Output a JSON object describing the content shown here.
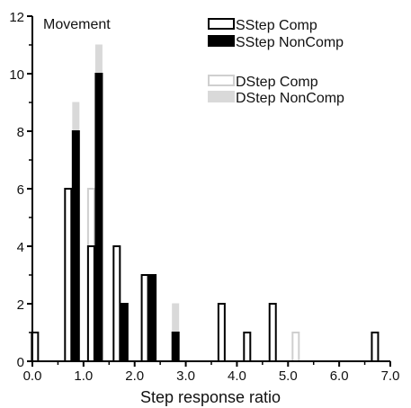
{
  "chart_data": {
    "type": "bar",
    "annotation": "Movement",
    "xlabel": "Step response ratio",
    "ylabel": "",
    "xlim": [
      0,
      7
    ],
    "ylim": [
      0,
      12
    ],
    "x_ticks": [
      "0.0",
      "1.0",
      "2.0",
      "3.0",
      "4.0",
      "5.0",
      "6.0",
      "7.0"
    ],
    "y_ticks": [
      "0",
      "2",
      "4",
      "6",
      "8",
      "10",
      "12"
    ],
    "legend": [
      {
        "name": "SStep Comp",
        "color": "#ffffff",
        "stroke": "#000000"
      },
      {
        "name": "SStep NonComp",
        "color": "#000000",
        "stroke": "#000000"
      },
      {
        "name": "DStep Comp",
        "color": "#ffffff",
        "stroke": "#cfcfcf"
      },
      {
        "name": "DStep NonComp",
        "color": "#d9d9d9",
        "stroke": "#d9d9d9"
      }
    ],
    "bars": [
      {
        "x": 0.05,
        "series": "SStep Comp",
        "value": 1
      },
      {
        "x": 0.7,
        "series": "SStep Comp",
        "value": 6
      },
      {
        "x": 0.85,
        "series": "SStep NonComp",
        "value": 8,
        "dstep_noncomp_stack": 1
      },
      {
        "x": 1.15,
        "series": "DStep Comp",
        "value": 6
      },
      {
        "x": 1.15,
        "series": "SStep Comp",
        "value": 4
      },
      {
        "x": 1.3,
        "series": "SStep NonComp",
        "value": 10,
        "dstep_noncomp_stack": 1
      },
      {
        "x": 1.65,
        "series": "SStep Comp",
        "value": 4
      },
      {
        "x": 1.8,
        "series": "SStep NonComp",
        "value": 2
      },
      {
        "x": 2.2,
        "series": "SStep Comp",
        "value": 3
      },
      {
        "x": 2.35,
        "series": "SStep NonComp",
        "value": 3
      },
      {
        "x": 2.8,
        "series": "SStep NonComp",
        "value": 1,
        "dstep_noncomp_stack": 1
      },
      {
        "x": 3.7,
        "series": "SStep Comp",
        "value": 2
      },
      {
        "x": 4.2,
        "series": "SStep Comp",
        "value": 1
      },
      {
        "x": 4.7,
        "series": "SStep Comp",
        "value": 2
      },
      {
        "x": 5.15,
        "series": "DStep Comp",
        "value": 1
      },
      {
        "x": 6.7,
        "series": "SStep Comp",
        "value": 1
      }
    ]
  }
}
